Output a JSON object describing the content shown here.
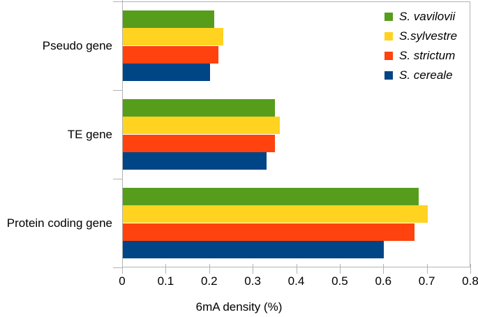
{
  "chart_data": {
    "type": "bar",
    "orientation": "horizontal",
    "title": "",
    "xlabel": "6mA density (%)",
    "ylabel": "",
    "xlim": [
      0,
      0.8
    ],
    "x_ticks": [
      0,
      0.1,
      0.2,
      0.3,
      0.4,
      0.5,
      0.6,
      0.7,
      0.8
    ],
    "x_tick_labels": [
      "0",
      "0.1",
      "0.2",
      "0.3",
      "0.4",
      "0.5",
      "0.6",
      "0.7",
      "0.8"
    ],
    "grid": false,
    "legend_position": "top-right-inside",
    "categories": [
      "Pseudo gene",
      "TE gene",
      "Protein coding gene"
    ],
    "series": [
      {
        "name": "S. vavilovii",
        "color": "#579D1C",
        "values": [
          0.21,
          0.35,
          0.68
        ]
      },
      {
        "name": "S.sylvestre",
        "color": "#FFD320",
        "values": [
          0.23,
          0.36,
          0.7
        ]
      },
      {
        "name": "S. strictum",
        "color": "#FF420E",
        "values": [
          0.22,
          0.35,
          0.67
        ]
      },
      {
        "name": "S. cereale",
        "color": "#004586",
        "values": [
          0.2,
          0.33,
          0.6
        ]
      }
    ]
  },
  "colors": {
    "axis_line": "#b3b3b3",
    "text": "#000000",
    "background": "#ffffff"
  }
}
